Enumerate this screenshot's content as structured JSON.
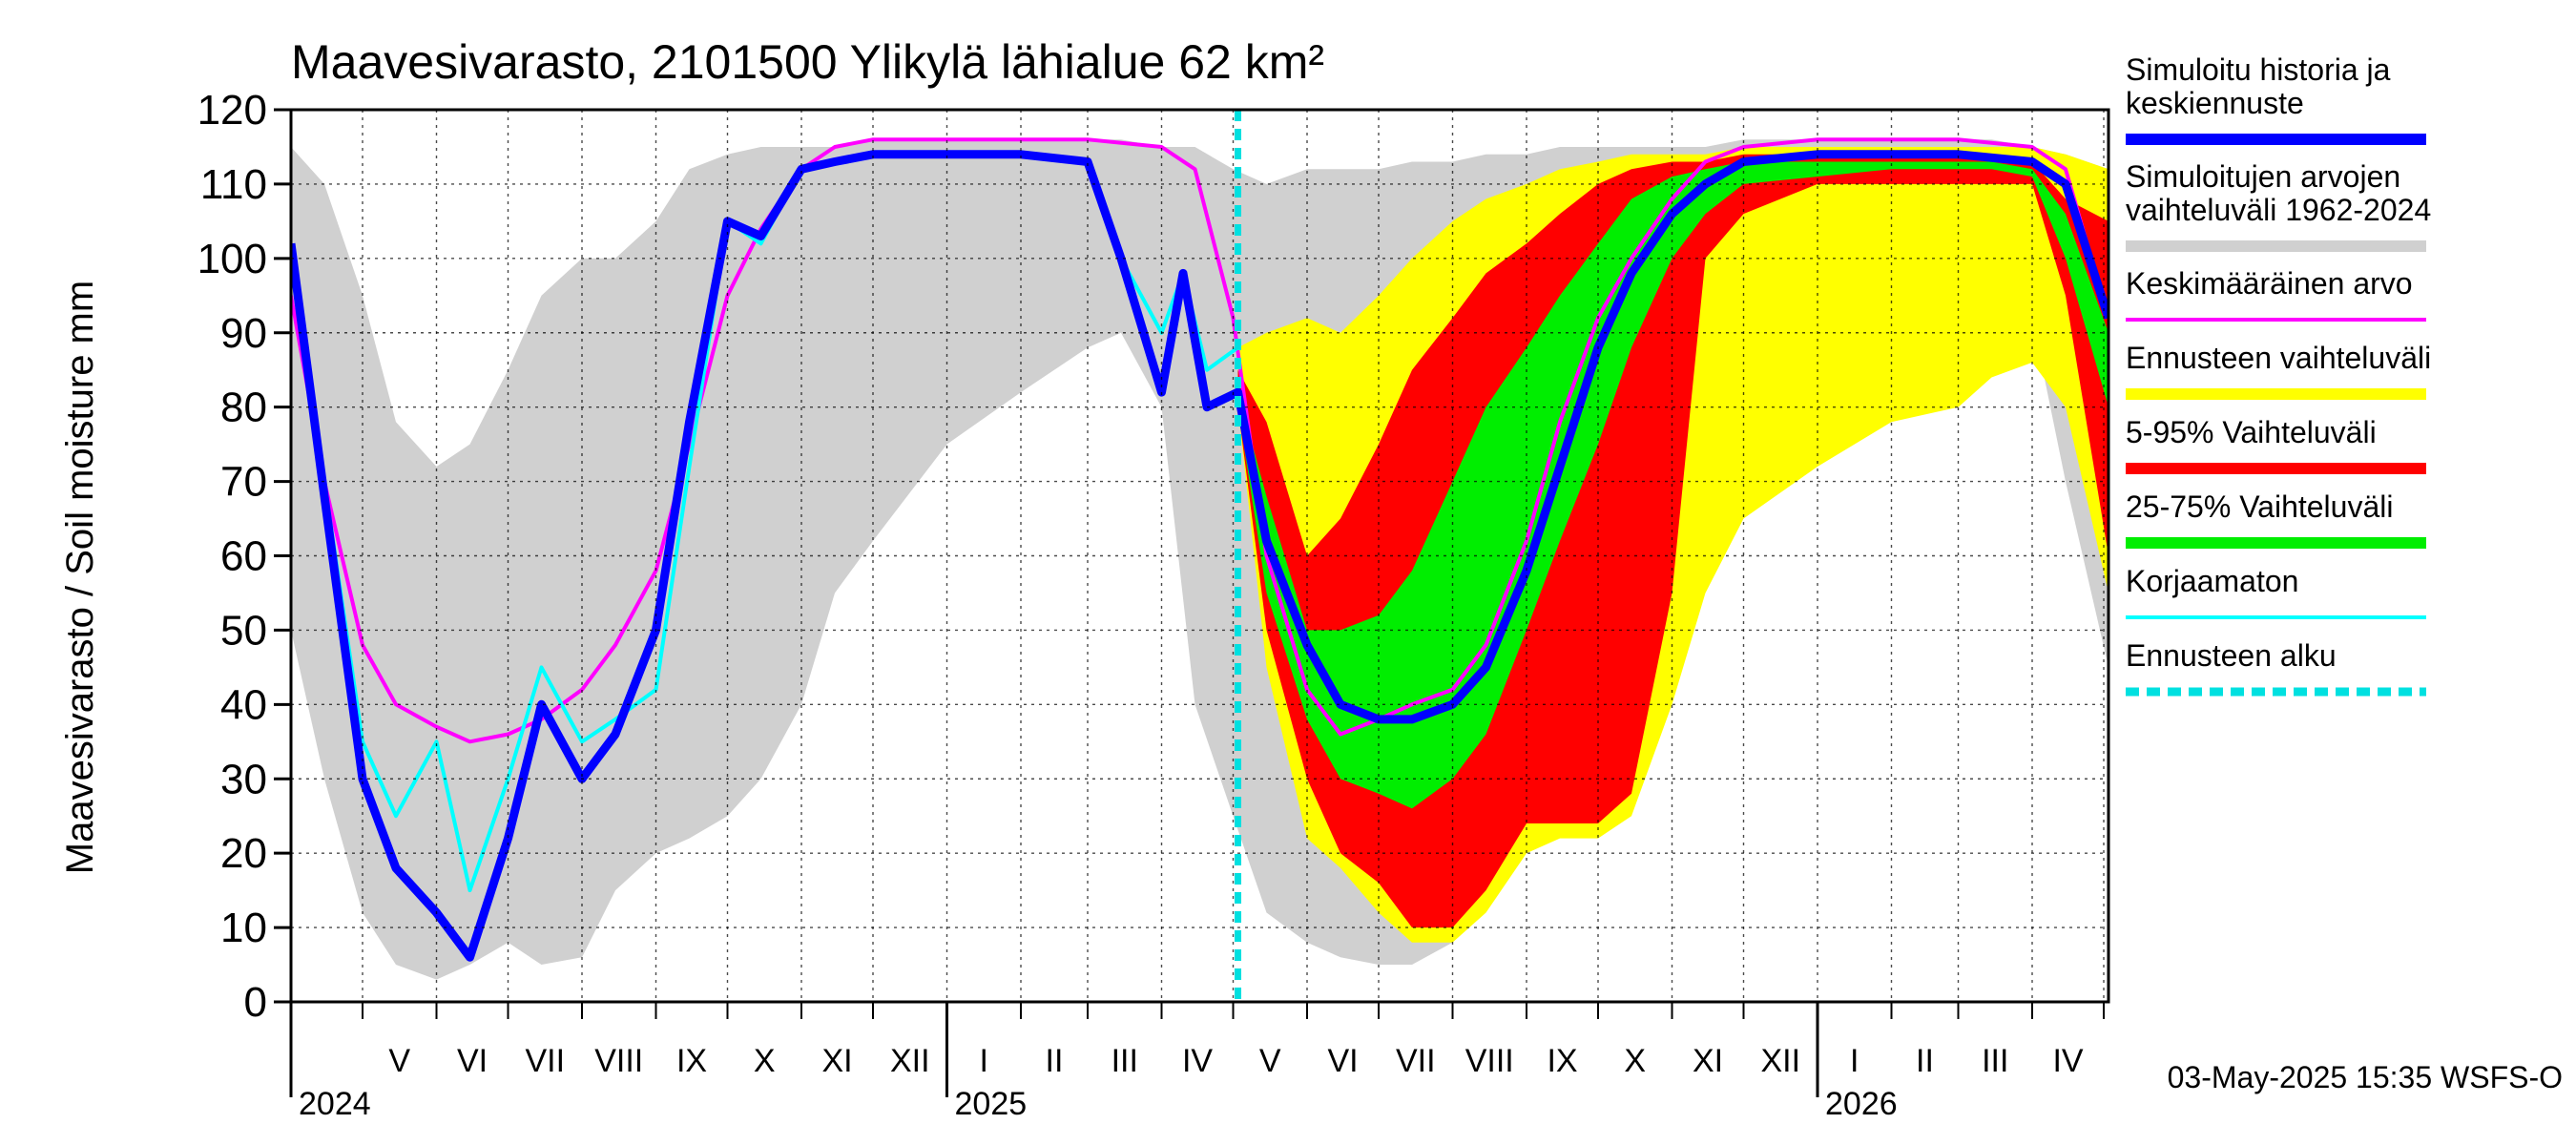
{
  "chart_data": {
    "type": "area",
    "title": "Maavesivarasto, 2101500 Ylikylä lähialue 62 km²",
    "ylabel": "Maavesivarasto / Soil moisture   mm",
    "ylim": [
      0,
      120
    ],
    "yticks": [
      0,
      10,
      20,
      30,
      40,
      50,
      60,
      70,
      80,
      90,
      100,
      110,
      120
    ],
    "xlim": [
      "2024-04-01",
      "2026-05-03"
    ],
    "grid": true,
    "legend_position": "right",
    "month_labels": [
      {
        "m": "2024-05",
        "label": "V"
      },
      {
        "m": "2024-06",
        "label": "VI"
      },
      {
        "m": "2024-07",
        "label": "VII"
      },
      {
        "m": "2024-08",
        "label": "VIII"
      },
      {
        "m": "2024-09",
        "label": "IX"
      },
      {
        "m": "2024-10",
        "label": "X"
      },
      {
        "m": "2024-11",
        "label": "XI"
      },
      {
        "m": "2024-12",
        "label": "XII"
      },
      {
        "m": "2025-01",
        "label": "I"
      },
      {
        "m": "2025-02",
        "label": "II"
      },
      {
        "m": "2025-03",
        "label": "III"
      },
      {
        "m": "2025-04",
        "label": "IV"
      },
      {
        "m": "2025-05",
        "label": "V"
      },
      {
        "m": "2025-06",
        "label": "VI"
      },
      {
        "m": "2025-07",
        "label": "VII"
      },
      {
        "m": "2025-08",
        "label": "VIII"
      },
      {
        "m": "2025-09",
        "label": "IX"
      },
      {
        "m": "2025-10",
        "label": "X"
      },
      {
        "m": "2025-11",
        "label": "XI"
      },
      {
        "m": "2025-12",
        "label": "XII"
      },
      {
        "m": "2026-01",
        "label": "I"
      },
      {
        "m": "2026-02",
        "label": "II"
      },
      {
        "m": "2026-03",
        "label": "III"
      },
      {
        "m": "2026-04",
        "label": "IV"
      }
    ],
    "year_labels": [
      {
        "date": "2024-04-01",
        "label": "2024"
      },
      {
        "date": "2025-01-01",
        "label": "2025"
      },
      {
        "date": "2026-01-01",
        "label": "2026"
      }
    ],
    "forecast_start": "2025-05-03",
    "footer": "03-May-2025 15:35 WSFS-O",
    "legend": [
      {
        "label": "Simuloitu historia ja\nkeskiennuste",
        "color": "#0000ff",
        "style": "thick"
      },
      {
        "label": "Simuloitujen arvojen\nvaihteluväli 1962-2024",
        "color": "#d0d0d0",
        "style": "thick"
      },
      {
        "label": "Keskimääräinen arvo",
        "color": "#ff00ff",
        "style": "thin"
      },
      {
        "label": "Ennusteen vaihteluväli",
        "color": "#ffff00",
        "style": "thick"
      },
      {
        "label": "5-95% Vaihteluväli",
        "color": "#ff0000",
        "style": "thick"
      },
      {
        "label": "25-75% Vaihteluväli",
        "color": "#00ee00",
        "style": "thick"
      },
      {
        "label": "Korjaamaton",
        "color": "#00ffff",
        "style": "thin"
      },
      {
        "label": "Ennusteen alku",
        "color": "#00e0e0",
        "style": "dashed"
      }
    ],
    "series": [
      {
        "name": "Simuloitujen arvojen vaihteluväli 1962-2024",
        "kind": "band",
        "color": "#d0d0d0",
        "x": [
          "2024-04-01",
          "2024-04-15",
          "2024-05-01",
          "2024-05-15",
          "2024-06-01",
          "2024-06-15",
          "2024-07-01",
          "2024-07-15",
          "2024-08-01",
          "2024-08-15",
          "2024-09-01",
          "2024-09-15",
          "2024-10-01",
          "2024-10-15",
          "2024-11-01",
          "2024-11-15",
          "2024-12-01",
          "2025-01-01",
          "2025-02-01",
          "2025-03-01",
          "2025-03-15",
          "2025-04-01",
          "2025-04-15",
          "2025-05-01",
          "2025-05-15",
          "2025-06-01",
          "2025-06-15",
          "2025-07-01",
          "2025-07-15",
          "2025-08-01",
          "2025-08-15",
          "2025-09-01",
          "2025-09-15",
          "2025-10-01",
          "2025-10-15",
          "2025-11-01",
          "2025-11-15",
          "2025-12-01",
          "2026-01-01",
          "2026-02-01",
          "2026-03-01",
          "2026-03-15",
          "2026-04-01",
          "2026-04-15",
          "2026-05-03"
        ],
        "upper": [
          115,
          110,
          95,
          78,
          72,
          75,
          85,
          95,
          100,
          100,
          105,
          112,
          114,
          115,
          115,
          115,
          116,
          116,
          116,
          116,
          116,
          115,
          115,
          112,
          110,
          112,
          112,
          112,
          113,
          113,
          114,
          114,
          115,
          115,
          115,
          115,
          115,
          116,
          116,
          116,
          116,
          116,
          115,
          114,
          112
        ],
        "lower": [
          50,
          30,
          12,
          5,
          3,
          5,
          8,
          5,
          6,
          15,
          20,
          22,
          25,
          30,
          40,
          55,
          62,
          75,
          82,
          88,
          90,
          80,
          40,
          25,
          12,
          8,
          6,
          5,
          5,
          8,
          15,
          30,
          50,
          62,
          68,
          70,
          72,
          74,
          78,
          82,
          87,
          88,
          92,
          70,
          45
        ]
      },
      {
        "name": "Ennusteen vaihteluväli",
        "kind": "band",
        "color": "#ffff00",
        "x": [
          "2025-05-03",
          "2025-05-15",
          "2025-06-01",
          "2025-06-15",
          "2025-07-01",
          "2025-07-15",
          "2025-08-01",
          "2025-08-15",
          "2025-09-01",
          "2025-09-15",
          "2025-10-01",
          "2025-10-15",
          "2025-11-01",
          "2025-11-15",
          "2025-12-01",
          "2026-01-01",
          "2026-02-01",
          "2026-03-01",
          "2026-03-15",
          "2026-04-01",
          "2026-04-15",
          "2026-05-03"
        ],
        "upper": [
          88,
          90,
          92,
          90,
          95,
          100,
          105,
          108,
          110,
          112,
          113,
          114,
          114,
          114,
          115,
          115,
          115,
          115,
          115,
          115,
          114,
          112
        ],
        "lower": [
          80,
          45,
          22,
          18,
          12,
          8,
          8,
          12,
          20,
          22,
          22,
          25,
          40,
          55,
          65,
          72,
          78,
          80,
          84,
          86,
          80,
          55
        ]
      },
      {
        "name": "5-95% Vaihteluväli",
        "kind": "band",
        "color": "#ff0000",
        "x": [
          "2025-05-03",
          "2025-05-15",
          "2025-06-01",
          "2025-06-15",
          "2025-07-01",
          "2025-07-15",
          "2025-08-01",
          "2025-08-15",
          "2025-09-01",
          "2025-09-15",
          "2025-10-01",
          "2025-10-15",
          "2025-11-01",
          "2025-11-15",
          "2025-12-01",
          "2026-01-01",
          "2026-02-01",
          "2026-03-01",
          "2026-03-15",
          "2026-04-01",
          "2026-04-15",
          "2026-05-03"
        ],
        "upper": [
          85,
          78,
          60,
          65,
          75,
          85,
          92,
          98,
          102,
          106,
          110,
          112,
          113,
          113,
          114,
          114,
          114,
          114,
          114,
          113,
          108,
          105
        ],
        "lower": [
          80,
          50,
          30,
          20,
          16,
          10,
          10,
          15,
          24,
          24,
          24,
          28,
          55,
          100,
          106,
          110,
          110,
          110,
          110,
          110,
          95,
          60
        ]
      },
      {
        "name": "25-75% Vaihteluväli",
        "kind": "band",
        "color": "#00ee00",
        "x": [
          "2025-05-03",
          "2025-05-15",
          "2025-06-01",
          "2025-06-15",
          "2025-07-01",
          "2025-07-15",
          "2025-08-01",
          "2025-08-15",
          "2025-09-01",
          "2025-09-15",
          "2025-10-01",
          "2025-10-15",
          "2025-11-01",
          "2025-11-15",
          "2025-12-01",
          "2026-01-01",
          "2026-02-01",
          "2026-03-01",
          "2026-03-15",
          "2026-04-01",
          "2026-04-15",
          "2026-05-03"
        ],
        "upper": [
          82,
          68,
          50,
          50,
          52,
          58,
          70,
          80,
          88,
          95,
          102,
          108,
          111,
          112,
          113,
          113,
          113,
          113,
          113,
          112,
          106,
          90
        ],
        "lower": [
          80,
          55,
          38,
          30,
          28,
          26,
          30,
          36,
          50,
          62,
          75,
          88,
          100,
          106,
          110,
          111,
          112,
          112,
          112,
          111,
          100,
          80
        ]
      },
      {
        "name": "Keskimääräinen arvo",
        "kind": "line",
        "color": "#ff00ff",
        "x": [
          "2024-04-01",
          "2024-04-15",
          "2024-05-01",
          "2024-05-15",
          "2024-06-01",
          "2024-06-15",
          "2024-07-01",
          "2024-07-15",
          "2024-08-01",
          "2024-08-15",
          "2024-09-01",
          "2024-09-15",
          "2024-10-01",
          "2024-10-15",
          "2024-11-01",
          "2024-11-15",
          "2024-12-01",
          "2025-01-01",
          "2025-02-01",
          "2025-03-01",
          "2025-04-01",
          "2025-04-15",
          "2025-05-01",
          "2025-05-15",
          "2025-06-01",
          "2025-06-15",
          "2025-07-01",
          "2025-07-15",
          "2025-08-01",
          "2025-08-15",
          "2025-09-01",
          "2025-09-15",
          "2025-10-01",
          "2025-10-15",
          "2025-11-01",
          "2025-11-15",
          "2025-12-01",
          "2026-01-01",
          "2026-02-01",
          "2026-03-01",
          "2026-04-01",
          "2026-04-15",
          "2026-05-03"
        ],
        "y": [
          95,
          70,
          48,
          40,
          37,
          35,
          36,
          38,
          42,
          48,
          58,
          75,
          95,
          104,
          112,
          115,
          116,
          116,
          116,
          116,
          115,
          112,
          92,
          60,
          42,
          36,
          38,
          40,
          42,
          48,
          62,
          78,
          92,
          100,
          108,
          113,
          115,
          116,
          116,
          116,
          115,
          112,
          92
        ]
      },
      {
        "name": "Korjaamaton",
        "kind": "line",
        "color": "#00ffff",
        "x": [
          "2024-04-01",
          "2024-04-15",
          "2024-05-01",
          "2024-05-15",
          "2024-06-01",
          "2024-06-15",
          "2024-07-01",
          "2024-07-15",
          "2024-08-01",
          "2024-08-15",
          "2024-09-01",
          "2024-09-15",
          "2024-10-01",
          "2024-10-15",
          "2024-11-01",
          "2024-11-15",
          "2024-12-01",
          "2025-01-01",
          "2025-02-01",
          "2025-03-01",
          "2025-03-15",
          "2025-04-01",
          "2025-04-10",
          "2025-04-20",
          "2025-05-03"
        ],
        "y": [
          100,
          70,
          35,
          25,
          35,
          15,
          30,
          45,
          35,
          38,
          42,
          72,
          105,
          102,
          112,
          113,
          114,
          114,
          114,
          113,
          100,
          90,
          98,
          85,
          88
        ]
      },
      {
        "name": "Simuloitu historia ja keskiennuste",
        "kind": "line",
        "color": "#0000ff",
        "x": [
          "2024-04-01",
          "2024-04-15",
          "2024-05-01",
          "2024-05-15",
          "2024-06-01",
          "2024-06-15",
          "2024-07-01",
          "2024-07-15",
          "2024-08-01",
          "2024-08-15",
          "2024-09-01",
          "2024-09-15",
          "2024-10-01",
          "2024-10-15",
          "2024-11-01",
          "2024-11-15",
          "2024-12-01",
          "2025-01-01",
          "2025-02-01",
          "2025-03-01",
          "2025-03-15",
          "2025-04-01",
          "2025-04-10",
          "2025-04-20",
          "2025-05-03",
          "2025-05-15",
          "2025-06-01",
          "2025-06-15",
          "2025-07-01",
          "2025-07-15",
          "2025-08-01",
          "2025-08-15",
          "2025-09-01",
          "2025-09-15",
          "2025-10-01",
          "2025-10-15",
          "2025-11-01",
          "2025-11-15",
          "2025-12-01",
          "2026-01-01",
          "2026-02-01",
          "2026-03-01",
          "2026-04-01",
          "2026-04-15",
          "2026-05-03"
        ],
        "y": [
          102,
          68,
          30,
          18,
          12,
          6,
          22,
          40,
          30,
          36,
          50,
          78,
          105,
          103,
          112,
          113,
          114,
          114,
          114,
          113,
          100,
          82,
          98,
          80,
          82,
          62,
          48,
          40,
          38,
          38,
          40,
          45,
          58,
          72,
          88,
          98,
          106,
          110,
          113,
          114,
          114,
          114,
          113,
          110,
          92
        ]
      }
    ]
  }
}
